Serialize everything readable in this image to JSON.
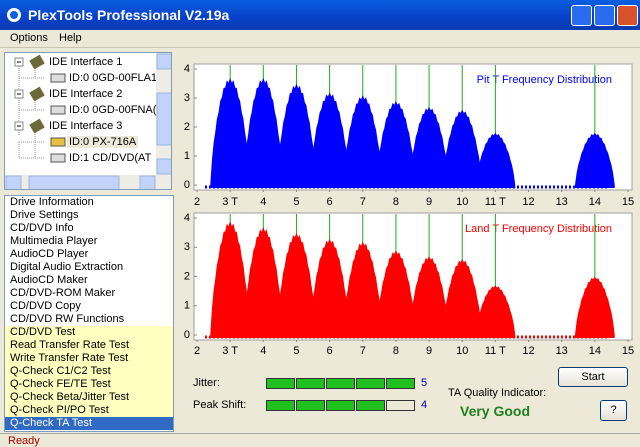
{
  "window": {
    "title": "PlexTools Professional V2.19a",
    "status": "Ready"
  },
  "menu": [
    "Options",
    "Help"
  ],
  "tree": [
    {
      "label": "IDE Interface 1",
      "children": [
        "ID:0  0GD-00FLA1"
      ]
    },
    {
      "label": "IDE Interface 2",
      "children": [
        "ID:0  0GD-00FNA("
      ]
    },
    {
      "label": "IDE Interface 3",
      "children": [
        "ID:0  PX-716A",
        "ID:1  CD/DVD(AT"
      ]
    }
  ],
  "list": {
    "items": [
      {
        "text": "Drive Information"
      },
      {
        "text": "Drive Settings"
      },
      {
        "text": "CD/DVD Info"
      },
      {
        "text": "Multimedia Player"
      },
      {
        "text": "AudioCD Player"
      },
      {
        "text": "Digital Audio Extraction"
      },
      {
        "text": "AudioCD Maker"
      },
      {
        "text": "CD/DVD-ROM Maker"
      },
      {
        "text": "CD/DVD Copy"
      },
      {
        "text": "CD/DVD RW Functions"
      },
      {
        "text": "CD/DVD Test",
        "background": "#ffffc0"
      },
      {
        "text": "Read Transfer Rate Test",
        "background": "#ffffc0"
      },
      {
        "text": "Write Transfer Rate Test",
        "background": "#ffffc0"
      },
      {
        "text": "Q-Check C1/C2 Test",
        "background": "#ffffc0"
      },
      {
        "text": "Q-Check FE/TE Test",
        "background": "#ffffc0"
      },
      {
        "text": "Q-Check Beta/Jitter Test",
        "background": "#ffffc0"
      },
      {
        "text": "Q-Check PI/PO Test",
        "background": "#ffffc0"
      },
      {
        "text": "Q-Check TA Test",
        "background": "#316ac5",
        "color": "#ffffff"
      }
    ]
  },
  "chart_data": [
    {
      "type": "area",
      "title": "Pit T Frequency Distribution",
      "color": "#0000ff",
      "marker_color": "#22aa22",
      "x": [
        3,
        4,
        5,
        6,
        7,
        8,
        9,
        10,
        11,
        14
      ],
      "values": [
        3.7,
        3.7,
        3.5,
        3.2,
        3.1,
        2.9,
        2.7,
        2.6,
        1.8,
        1.8
      ],
      "xlim": [
        2,
        15
      ],
      "xticks": [
        2,
        {
          "value": 3,
          "label": "3 T"
        },
        4,
        5,
        6,
        7,
        8,
        9,
        10,
        {
          "value": 11,
          "label": "11 T"
        },
        12,
        13,
        14,
        15
      ],
      "ylim": [
        0,
        4
      ],
      "yticks": [
        0,
        1,
        2,
        3,
        4
      ]
    },
    {
      "type": "area",
      "title": "Land T Frequency Distribution",
      "color": "#ff0000",
      "marker_color": "#22aa22",
      "x": [
        3,
        4,
        5,
        6,
        7,
        8,
        9,
        10,
        11,
        14
      ],
      "values": [
        3.9,
        3.7,
        3.5,
        3.3,
        3.2,
        2.9,
        2.7,
        2.6,
        1.7,
        2.0
      ],
      "xlim": [
        2,
        15
      ],
      "xticks": [
        2,
        {
          "value": 3,
          "label": "3 T"
        },
        4,
        5,
        6,
        7,
        8,
        9,
        10,
        {
          "value": 11,
          "label": "11 T"
        },
        12,
        13,
        14,
        15
      ],
      "ylim": [
        0,
        4
      ],
      "yticks": [
        0,
        1,
        2,
        3,
        4
      ]
    }
  ],
  "quality": {
    "jitter": {
      "label": "Jitter:",
      "value": 5
    },
    "peak_shift": {
      "label": "Peak Shift:",
      "value": 4
    },
    "indicator_label": "TA Quality Indicator:",
    "indicator_value": "Very Good",
    "start": "Start",
    "help": "?"
  }
}
